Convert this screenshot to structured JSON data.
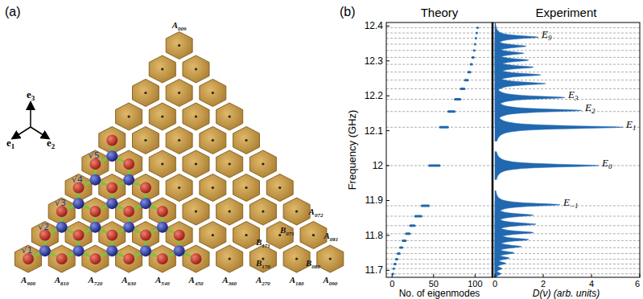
{
  "panel_a": {
    "label": "(a)",
    "axis_labels": [
      {
        "base": "e",
        "sub": "1"
      },
      {
        "base": "e",
        "sub": "2"
      },
      {
        "base": "e",
        "sub": "3"
      }
    ],
    "site_labels": [
      {
        "base": "A",
        "sub": "009"
      },
      {
        "base": "A",
        "sub": "900"
      },
      {
        "base": "A",
        "sub": "810"
      },
      {
        "base": "A",
        "sub": "720"
      },
      {
        "base": "A",
        "sub": "630"
      },
      {
        "base": "A",
        "sub": "540"
      },
      {
        "base": "A",
        "sub": "450"
      },
      {
        "base": "A",
        "sub": "360"
      },
      {
        "base": "A",
        "sub": "270"
      },
      {
        "base": "A",
        "sub": "180"
      },
      {
        "base": "A",
        "sub": "090"
      },
      {
        "base": "A",
        "sub": "072"
      },
      {
        "base": "B",
        "sub": "071"
      },
      {
        "base": "A",
        "sub": "081"
      },
      {
        "base": "B",
        "sub": "171"
      },
      {
        "base": "B",
        "sub": "170"
      },
      {
        "base": "B",
        "sub": "080"
      }
    ],
    "bond_labels": [
      "√1",
      "√2",
      "√3",
      "√4",
      "√5"
    ]
  },
  "panel_b_label": "(b)",
  "chart_data": [
    {
      "type": "levels",
      "title": "Theory",
      "x_label": "No. of eigenmodes",
      "y_label": "Frequency (GHz)",
      "xlim": [
        -7,
        121
      ],
      "xticks": [
        0,
        50,
        100
      ],
      "ylim": [
        11.68,
        12.41
      ],
      "yticks": [
        11.7,
        11.8,
        11.9,
        12,
        12.1,
        12.2,
        12.3,
        12.4
      ],
      "grid": true,
      "color": "#2068b0",
      "levels": [
        {
          "frequency": 11.69,
          "from": 1,
          "to": 1
        },
        {
          "frequency": 11.705,
          "from": 2,
          "to": 2
        },
        {
          "frequency": 11.718,
          "from": 3,
          "to": 4
        },
        {
          "frequency": 11.732,
          "from": 5,
          "to": 6
        },
        {
          "frequency": 11.748,
          "from": 7,
          "to": 9
        },
        {
          "frequency": 11.765,
          "from": 10,
          "to": 12
        },
        {
          "frequency": 11.785,
          "from": 13,
          "to": 16
        },
        {
          "frequency": 11.805,
          "from": 17,
          "to": 21
        },
        {
          "frequency": 11.828,
          "from": 22,
          "to": 27
        },
        {
          "frequency": 11.855,
          "from": 28,
          "to": 35
        },
        {
          "frequency": 11.885,
          "from": 36,
          "to": 44
        },
        {
          "frequency": 12.0,
          "from": 45,
          "to": 57
        },
        {
          "frequency": 12.11,
          "from": 58,
          "to": 67
        },
        {
          "frequency": 12.155,
          "from": 68,
          "to": 75
        },
        {
          "frequency": 12.19,
          "from": 76,
          "to": 82
        },
        {
          "frequency": 12.22,
          "from": 83,
          "to": 87
        },
        {
          "frequency": 12.245,
          "from": 88,
          "to": 91
        },
        {
          "frequency": 12.268,
          "from": 92,
          "to": 94
        },
        {
          "frequency": 12.29,
          "from": 95,
          "to": 96
        },
        {
          "frequency": 12.31,
          "from": 97,
          "to": 98
        },
        {
          "frequency": 12.33,
          "from": 99,
          "to": 99
        },
        {
          "frequency": 12.348,
          "from": 100,
          "to": 100
        },
        {
          "frequency": 12.365,
          "from": 101,
          "to": 101
        },
        {
          "frequency": 12.38,
          "from": 102,
          "to": 102
        },
        {
          "frequency": 12.395,
          "from": 103,
          "to": 103
        }
      ]
    },
    {
      "type": "spectrum",
      "title": "Experiment",
      "x_label": "D(ν) (arb. units)",
      "xlim": [
        -0.1,
        6
      ],
      "xticks": [
        0,
        2,
        4,
        6
      ],
      "ylim": [
        11.68,
        12.41
      ],
      "tick_labels": "x",
      "color": "#2068b0",
      "peak_width": 0.005,
      "peaks": [
        {
          "frequency": 11.69,
          "height": 0.25
        },
        {
          "frequency": 11.705,
          "height": 0.3
        },
        {
          "frequency": 11.72,
          "height": 0.45
        },
        {
          "frequency": 11.735,
          "height": 0.6
        },
        {
          "frequency": 11.75,
          "height": 0.8
        },
        {
          "frequency": 11.768,
          "height": 1.1
        },
        {
          "frequency": 11.788,
          "height": 1.4
        },
        {
          "frequency": 11.808,
          "height": 1.6
        },
        {
          "frequency": 11.832,
          "height": 1.7
        },
        {
          "frequency": 11.858,
          "height": 1.6
        },
        {
          "frequency": 11.888,
          "height": 2.7,
          "label": {
            "base": "E",
            "sub": "−1"
          }
        },
        {
          "frequency": 12.0,
          "height": 4.3,
          "label": {
            "base": "E",
            "sub": "0"
          }
        },
        {
          "frequency": 12.11,
          "height": 5.3,
          "label": {
            "base": "E",
            "sub": "1"
          }
        },
        {
          "frequency": 12.158,
          "height": 3.6,
          "label": {
            "base": "E",
            "sub": "2"
          }
        },
        {
          "frequency": 12.195,
          "height": 2.9,
          "label": {
            "base": "E",
            "sub": "3"
          }
        },
        {
          "frequency": 12.235,
          "height": 2.1
        },
        {
          "frequency": 12.26,
          "height": 1.9
        },
        {
          "frequency": 12.282,
          "height": 1.6
        },
        {
          "frequency": 12.302,
          "height": 1.4
        },
        {
          "frequency": 12.322,
          "height": 1.2
        },
        {
          "frequency": 12.342,
          "height": 1.3
        },
        {
          "frequency": 12.368,
          "height": 1.8,
          "label": {
            "base": "E",
            "sub": "9"
          }
        }
      ]
    }
  ]
}
